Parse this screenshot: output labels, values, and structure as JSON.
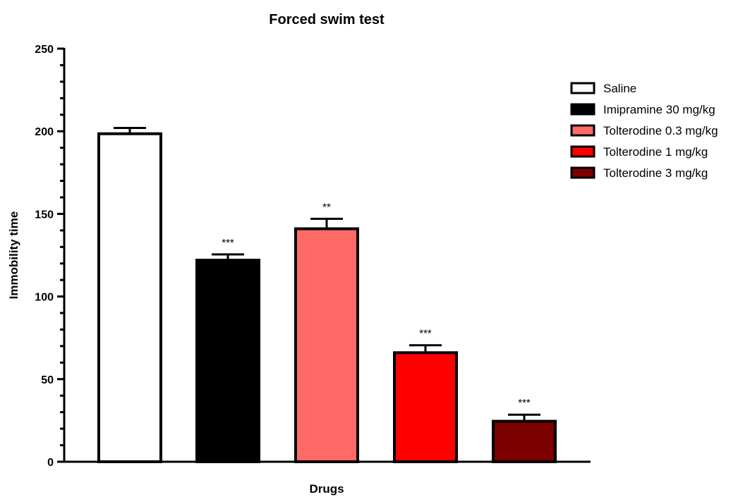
{
  "chart_data": {
    "type": "bar",
    "title": "Forced swim test",
    "xlabel": "Drugs",
    "ylabel": "Immobility time",
    "ylim": [
      0,
      250
    ],
    "yticks": [
      0,
      50,
      100,
      150,
      200,
      250
    ],
    "y_minor_step": 10,
    "legend_position": "right",
    "categories": [
      "Saline",
      "Imipramine 30 mg/kg",
      "Tolterodine 0.3 mg/kg",
      "Tolterodine 1 mg/kg",
      "Tolterodine 3 mg/kg"
    ],
    "values": [
      198.5,
      122,
      141,
      66,
      24.5
    ],
    "errors": [
      3.5,
      3.5,
      6,
      4.5,
      4
    ],
    "significance": [
      "",
      "***",
      "**",
      "***",
      "***"
    ],
    "colors": [
      "#ffffff",
      "#000000",
      "#ff6a67",
      "#fe0000",
      "#7c0000"
    ]
  }
}
